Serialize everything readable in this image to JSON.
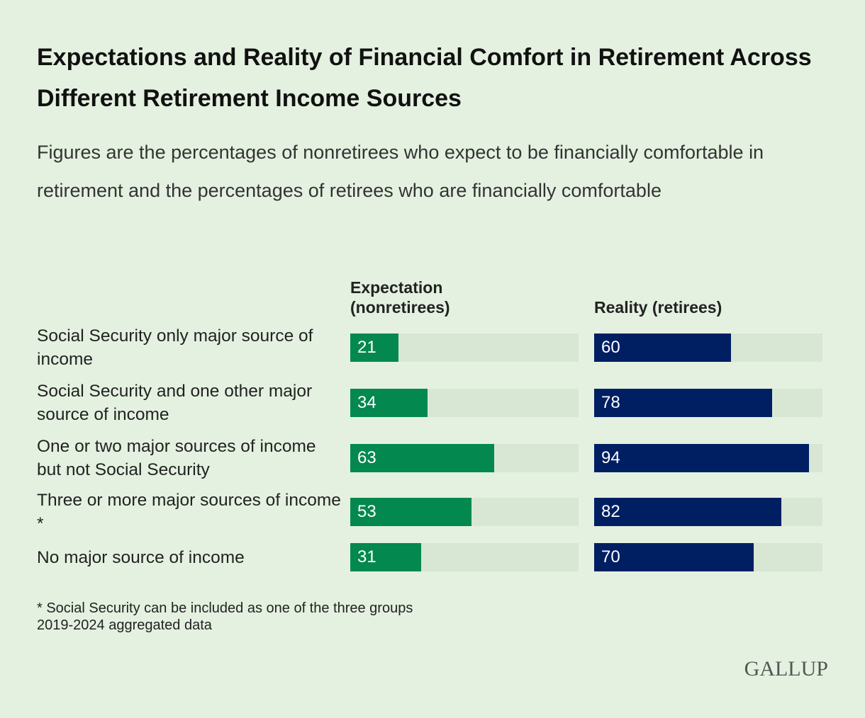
{
  "chart_data": {
    "type": "hbar",
    "title": "Expectations and Reality of Financial Comfort in Retirement Across Different Retirement Income Sources",
    "subtitle": "Figures are the percentages of nonretirees who expect to be financially comfortable in retirement and the percentages of retirees who are financially comfortable",
    "categories": [
      "Social Security only major source of income",
      "Social Security and one other major source of income",
      "One or two major sources of income but not Social Security",
      "Three or more major sources of income *",
      "No major source of income"
    ],
    "series": [
      {
        "name": "Expectation (nonretirees)",
        "color": "#03884f",
        "values": [
          21,
          34,
          63,
          53,
          31
        ]
      },
      {
        "name": "Reality (retirees)",
        "color": "#001f63",
        "values": [
          60,
          78,
          94,
          82,
          70
        ]
      }
    ],
    "xlim": [
      0,
      100
    ],
    "track_color": "#d8e7d4",
    "notes": [
      "* Social Security can be included as one of the three groups",
      "2019-2024 aggregated data"
    ],
    "logo": "GALLUP"
  }
}
